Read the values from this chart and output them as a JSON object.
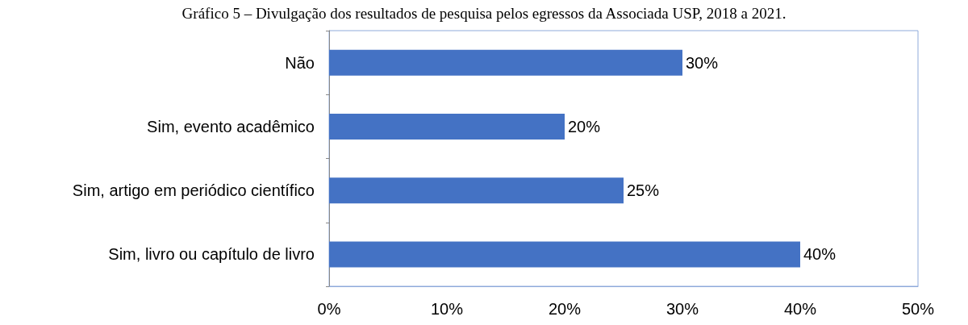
{
  "chart_data": {
    "type": "bar",
    "orientation": "horizontal",
    "title": "Gráfico 5 – Divulgação dos resultados de pesquisa pelos egressos da Associada USP, 2018 a 2021.",
    "categories": [
      "Não",
      "Sim, evento acadêmico",
      "Sim, artigo em periódico científico",
      "Sim, livro ou capítulo de livro"
    ],
    "values": [
      30,
      20,
      25,
      40
    ],
    "value_labels": [
      "30%",
      "20%",
      "25%",
      "40%"
    ],
    "color": "#4472c4",
    "xlim": [
      0,
      50
    ],
    "xticks": [
      {
        "value": 0,
        "label": "0%"
      },
      {
        "value": 10,
        "label": "10%"
      },
      {
        "value": 20,
        "label": "20%"
      },
      {
        "value": 30,
        "label": "30%"
      },
      {
        "value": 40,
        "label": "40%"
      },
      {
        "value": 50,
        "label": "50%"
      }
    ],
    "grid": false
  }
}
